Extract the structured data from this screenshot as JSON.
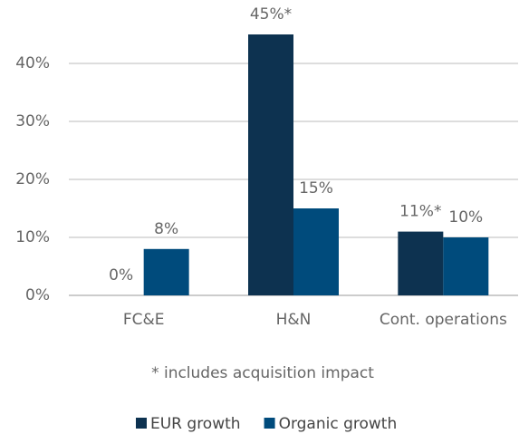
{
  "chart_data": {
    "type": "bar",
    "categories": [
      "FC&E",
      "H&N",
      "Cont. operations"
    ],
    "series": [
      {
        "name": "EUR growth",
        "color": "#0d3250",
        "values": [
          0,
          45,
          11
        ],
        "value_labels": [
          "0%",
          "45%*",
          "11%*"
        ]
      },
      {
        "name": "Organic growth",
        "color": "#004b7c",
        "values": [
          8,
          15,
          10
        ],
        "value_labels": [
          "8%",
          "15%",
          "10%"
        ]
      }
    ],
    "ylim": [
      0,
      50
    ],
    "yticks": [
      {
        "value": 0,
        "label": "0%"
      },
      {
        "value": 10,
        "label": "10%"
      },
      {
        "value": 20,
        "label": "20%"
      },
      {
        "value": 30,
        "label": "30%"
      },
      {
        "value": 40,
        "label": "40%"
      }
    ],
    "grid": true,
    "annotation": "* includes acquisition impact",
    "legend": "bottom"
  }
}
